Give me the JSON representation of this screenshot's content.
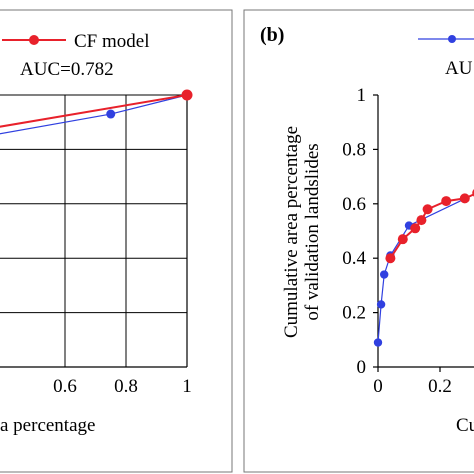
{
  "chart_data": [
    {
      "type": "line",
      "xlim": [
        0,
        1
      ],
      "ylim": [
        0,
        1
      ],
      "grid": true,
      "x_tick_labels": [
        "0.6",
        "0.8",
        "1"
      ],
      "xlabel_fragment": "a percentage",
      "legend": {
        "placement": "top-right",
        "label": "CF model",
        "auc": "AUC=0.782"
      },
      "series": [
        {
          "name": "CF model",
          "color": "#e8212b",
          "marker": "circle",
          "points": [
            [
              0.0,
              0.81
            ],
            [
              1.0,
              1.0
            ]
          ]
        },
        {
          "color": "#3040e0",
          "marker": "circle",
          "points": [
            [
              0.0,
              0.78
            ],
            [
              0.75,
              0.93
            ],
            [
              1.0,
              1.0
            ]
          ]
        }
      ]
    },
    {
      "type": "line",
      "panel_label": "(b)",
      "xlim": [
        0,
        1
      ],
      "ylim": [
        0,
        1
      ],
      "grid": false,
      "y_tick_labels": [
        "0",
        "0.2",
        "0.4",
        "0.6",
        "0.8",
        "1"
      ],
      "x_tick_labels": [
        "0",
        "0.2"
      ],
      "ylabel_line1": "Cumulative area percentage",
      "ylabel_line2": "of validation landslides",
      "xlabel_fragment": "Cu",
      "legend_fragment": "AU",
      "series": [
        {
          "color": "#3040e0",
          "marker": "circle",
          "points": [
            [
              0.0,
              0.09
            ],
            [
              0.01,
              0.23
            ],
            [
              0.02,
              0.34
            ],
            [
              0.04,
              0.41
            ],
            [
              0.1,
              0.52
            ],
            [
              0.32,
              0.64
            ],
            [
              0.4,
              0.66
            ]
          ]
        },
        {
          "color": "#e8212b",
          "marker": "circle",
          "points": [
            [
              0.04,
              0.4
            ],
            [
              0.08,
              0.47
            ],
            [
              0.12,
              0.51
            ],
            [
              0.14,
              0.54
            ],
            [
              0.16,
              0.58
            ],
            [
              0.22,
              0.61
            ],
            [
              0.28,
              0.62
            ],
            [
              0.32,
              0.64
            ],
            [
              0.4,
              0.66
            ]
          ]
        }
      ]
    }
  ]
}
